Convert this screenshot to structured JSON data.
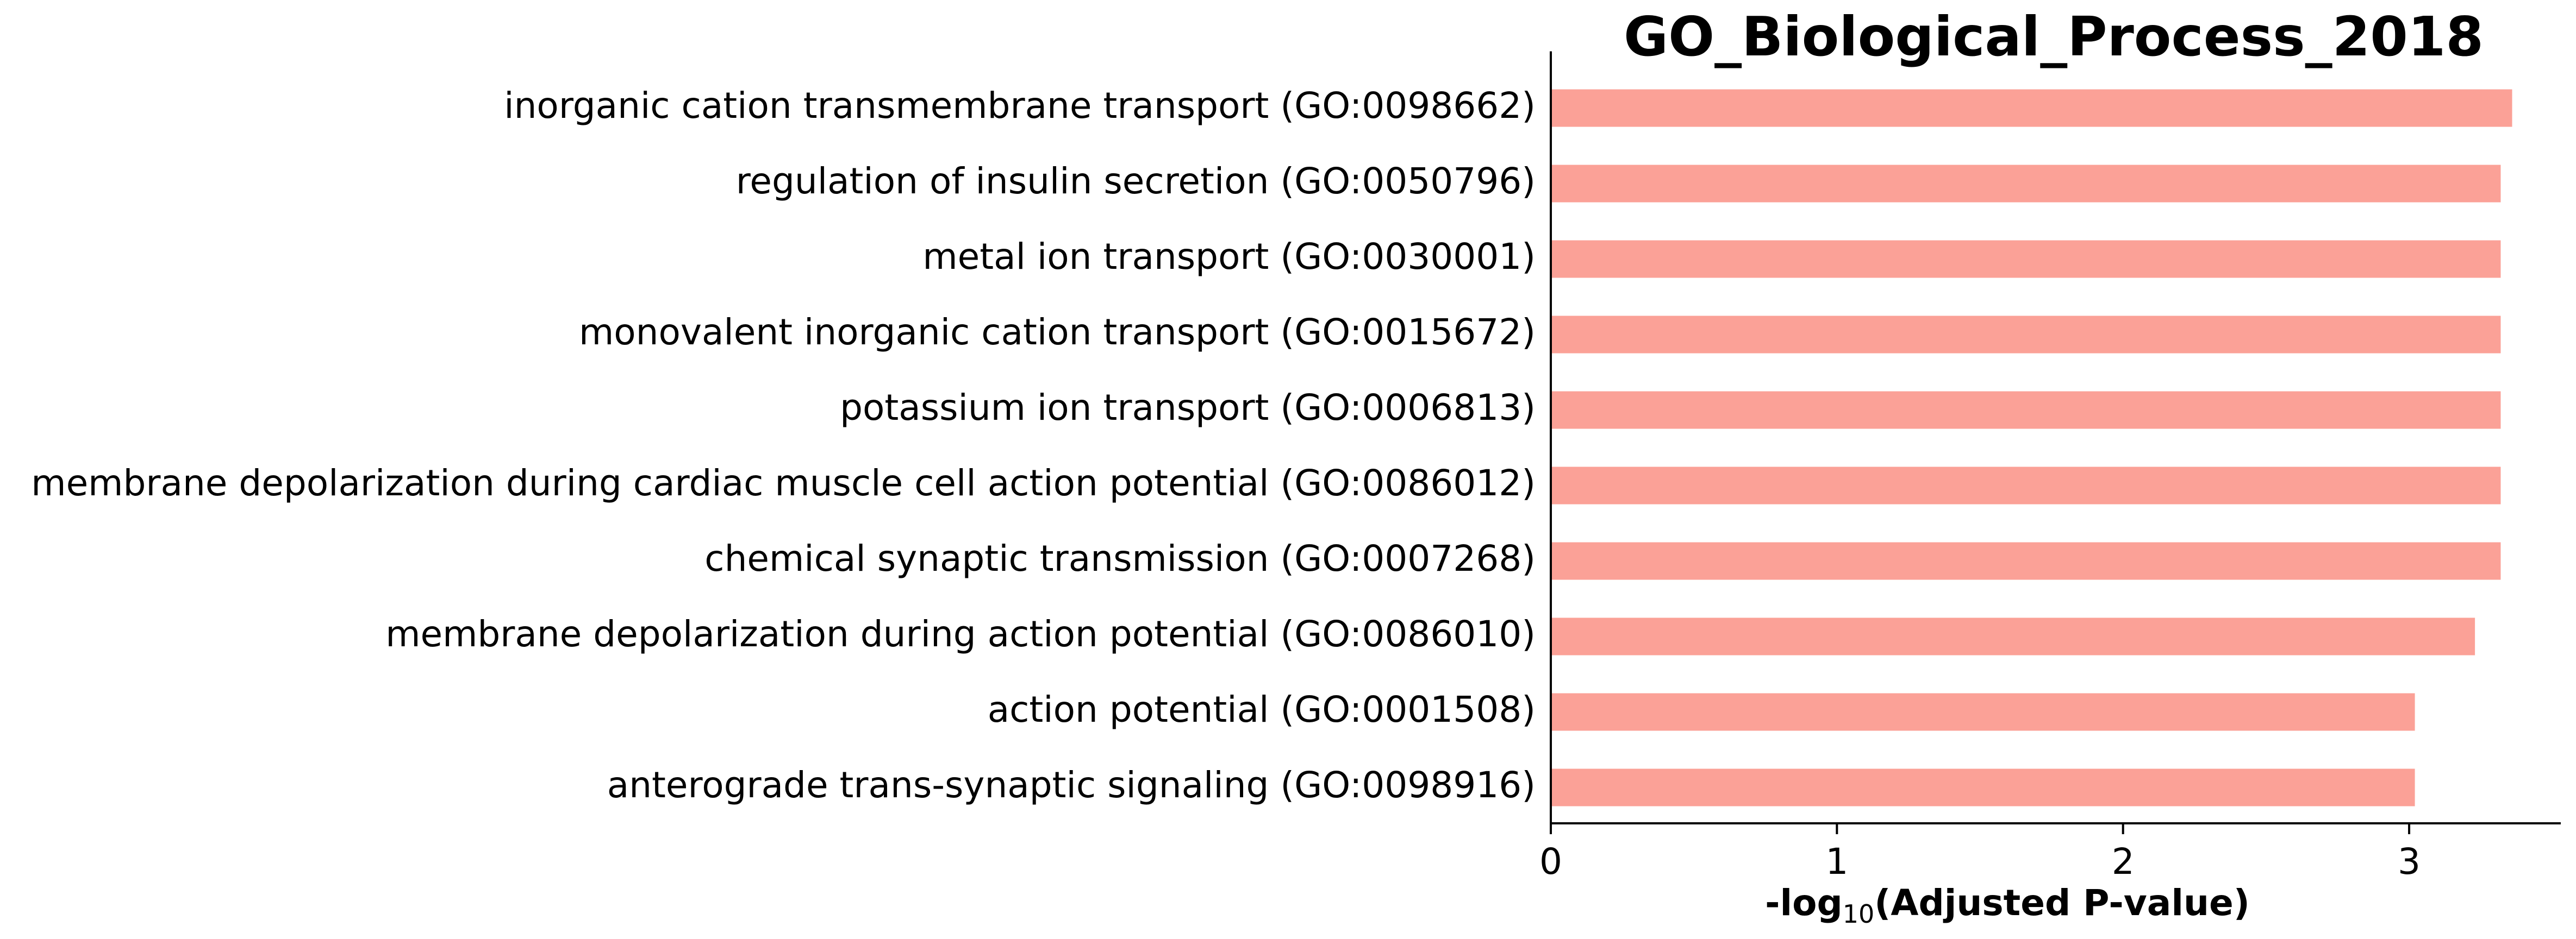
{
  "chart_data": {
    "type": "bar",
    "orientation": "horizontal",
    "title": "GO_Biological_Process_2018",
    "xlabel": {
      "prefix": "-log",
      "subscript": "10",
      "suffix": "(Adjusted P-value)"
    },
    "ylabel": "",
    "xlim": [
      0,
      3.53
    ],
    "xticks": [
      0,
      1,
      2,
      3
    ],
    "grid": false,
    "legend": "none",
    "bar_color": "#fba197",
    "categories": [
      "inorganic cation transmembrane transport (GO:0098662)",
      "regulation of insulin secretion (GO:0050796)",
      "metal ion transport (GO:0030001)",
      "monovalent inorganic cation transport (GO:0015672)",
      "potassium ion transport (GO:0006813)",
      "membrane depolarization during cardiac muscle cell action potential (GO:0086012)",
      "chemical synaptic transmission (GO:0007268)",
      "membrane depolarization during action potential (GO:0086010)",
      "action potential (GO:0001508)",
      "anterograde trans-synaptic signaling (GO:0098916)"
    ],
    "values": [
      3.36,
      3.32,
      3.32,
      3.32,
      3.32,
      3.32,
      3.32,
      3.23,
      3.02,
      3.02
    ]
  }
}
